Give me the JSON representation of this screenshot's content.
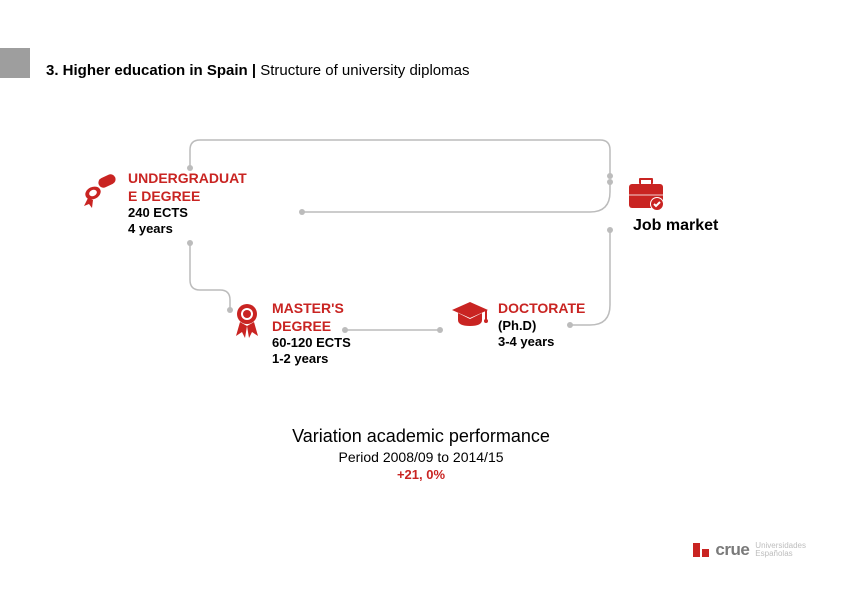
{
  "header": {
    "bold_part": "3. Higher education in Spain |",
    "normal_part": " Structure of university diplomas"
  },
  "colors": {
    "red": "#c92422",
    "black": "#000000",
    "connector_gray": "#bcbcbc",
    "accent_gray": "#9e9e9e",
    "logo_text_gray": "#7a7a7a",
    "logo_sub_gray": "#bdbdbd"
  },
  "nodes": {
    "undergrad": {
      "title_line1": "UNDERGRADUAT",
      "title_line2": "E DEGREE",
      "sub1": "240 ECTS",
      "sub2": "4 years"
    },
    "master": {
      "title_line1": "MASTER'S",
      "title_line2": "DEGREE",
      "sub1": "60-120 ECTS",
      "sub2": "1-2 years"
    },
    "doctorate": {
      "title": "DOCTORATE",
      "sub1": "(Ph.D)",
      "sub2": "3-4 years"
    },
    "jobmarket": {
      "label": "Job market"
    }
  },
  "connectors": {
    "paths": [
      "M 110 113 L 110 150 Q 110 160 120 160 L 140 160 Q 150 160 150 170 L 150 180",
      "M 222 82 L 510 82 Q 530 82 530 62 L 530 52",
      "M 265 200 L 360 200",
      "M 490 195 L 510 195 Q 530 195 530 175 L 530 100",
      "M 110 38 L 110 20 Q 110 10 120 10 L 520 10 Q 530 10 530 20 L 530 46"
    ],
    "stroke_width": 1.5,
    "dot_radius": 3
  },
  "stats": {
    "line1": "Variation academic performance",
    "line2": "Period 2008/09 to 2014/15",
    "line3": "+21, 0%"
  },
  "footer": {
    "word": "crue",
    "sub1": "Universidades",
    "sub2": "Españolas"
  }
}
